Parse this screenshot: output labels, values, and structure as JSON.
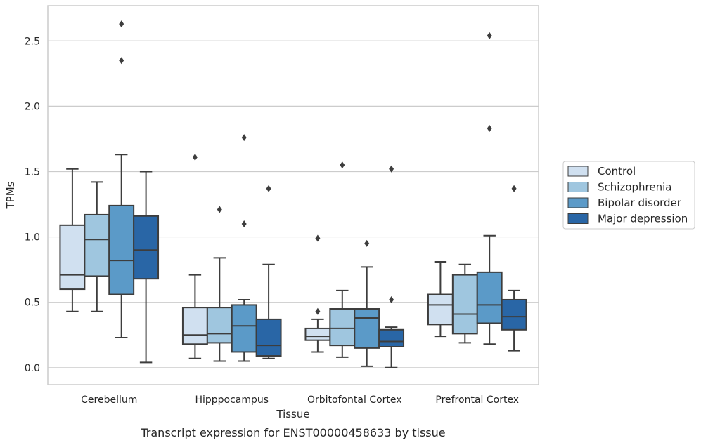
{
  "chart_data": {
    "type": "box",
    "title": "",
    "xlabel": "Tissue",
    "ylabel": "TPMs",
    "caption": "Transcript expression for ENST00000458633 by tissue",
    "categories": [
      "Cerebellum",
      "Hipppocampus",
      "Orbitofontal Cortex",
      "Prefrontal Cortex"
    ],
    "ylim": [
      -0.13,
      2.77
    ],
    "yticks": [
      "0.0",
      "0.5",
      "1.0",
      "1.5",
      "2.0",
      "2.5"
    ],
    "grid": "horizontal",
    "legend_position": "right",
    "series": [
      {
        "name": "Control",
        "color": "#d0e0f0",
        "boxes": [
          {
            "whislo": 0.43,
            "q1": 0.6,
            "med": 0.71,
            "q3": 1.09,
            "whishi": 1.52,
            "fliers": []
          },
          {
            "whislo": 0.07,
            "q1": 0.18,
            "med": 0.25,
            "q3": 0.46,
            "whishi": 0.71,
            "fliers": [
              1.61
            ]
          },
          {
            "whislo": 0.12,
            "q1": 0.21,
            "med": 0.24,
            "q3": 0.3,
            "whishi": 0.37,
            "fliers": [
              0.43,
              0.99
            ]
          },
          {
            "whislo": 0.24,
            "q1": 0.33,
            "med": 0.48,
            "q3": 0.56,
            "whishi": 0.81,
            "fliers": []
          }
        ]
      },
      {
        "name": "Schizophrenia",
        "color": "#9fc6df",
        "boxes": [
          {
            "whislo": 0.43,
            "q1": 0.7,
            "med": 0.98,
            "q3": 1.17,
            "whishi": 1.42,
            "fliers": []
          },
          {
            "whislo": 0.05,
            "q1": 0.19,
            "med": 0.26,
            "q3": 0.46,
            "whishi": 0.84,
            "fliers": [
              1.21
            ]
          },
          {
            "whislo": 0.08,
            "q1": 0.17,
            "med": 0.3,
            "q3": 0.45,
            "whishi": 0.59,
            "fliers": [
              1.55
            ]
          },
          {
            "whislo": 0.19,
            "q1": 0.26,
            "med": 0.41,
            "q3": 0.71,
            "whishi": 0.79,
            "fliers": []
          }
        ]
      },
      {
        "name": "Bipolar disorder",
        "color": "#5b9ac8",
        "boxes": [
          {
            "whislo": 0.23,
            "q1": 0.56,
            "med": 0.82,
            "q3": 1.24,
            "whishi": 1.63,
            "fliers": [
              2.35,
              2.63
            ]
          },
          {
            "whislo": 0.05,
            "q1": 0.12,
            "med": 0.32,
            "q3": 0.48,
            "whishi": 0.52,
            "fliers": [
              1.1,
              1.76
            ]
          },
          {
            "whislo": 0.01,
            "q1": 0.15,
            "med": 0.38,
            "q3": 0.45,
            "whishi": 0.77,
            "fliers": [
              0.95
            ]
          },
          {
            "whislo": 0.18,
            "q1": 0.34,
            "med": 0.48,
            "q3": 0.73,
            "whishi": 1.01,
            "fliers": [
              1.83,
              2.54
            ]
          }
        ]
      },
      {
        "name": "Major depression",
        "color": "#2966a6",
        "boxes": [
          {
            "whislo": 0.04,
            "q1": 0.68,
            "med": 0.9,
            "q3": 1.16,
            "whishi": 1.5,
            "fliers": []
          },
          {
            "whislo": 0.07,
            "q1": 0.09,
            "med": 0.17,
            "q3": 0.37,
            "whishi": 0.79,
            "fliers": [
              1.37
            ]
          },
          {
            "whislo": 0.0,
            "q1": 0.16,
            "med": 0.2,
            "q3": 0.29,
            "whishi": 0.31,
            "fliers": [
              0.52,
              1.52
            ]
          },
          {
            "whislo": 0.13,
            "q1": 0.29,
            "med": 0.39,
            "q3": 0.52,
            "whishi": 0.59,
            "fliers": [
              1.37
            ]
          }
        ]
      }
    ]
  }
}
